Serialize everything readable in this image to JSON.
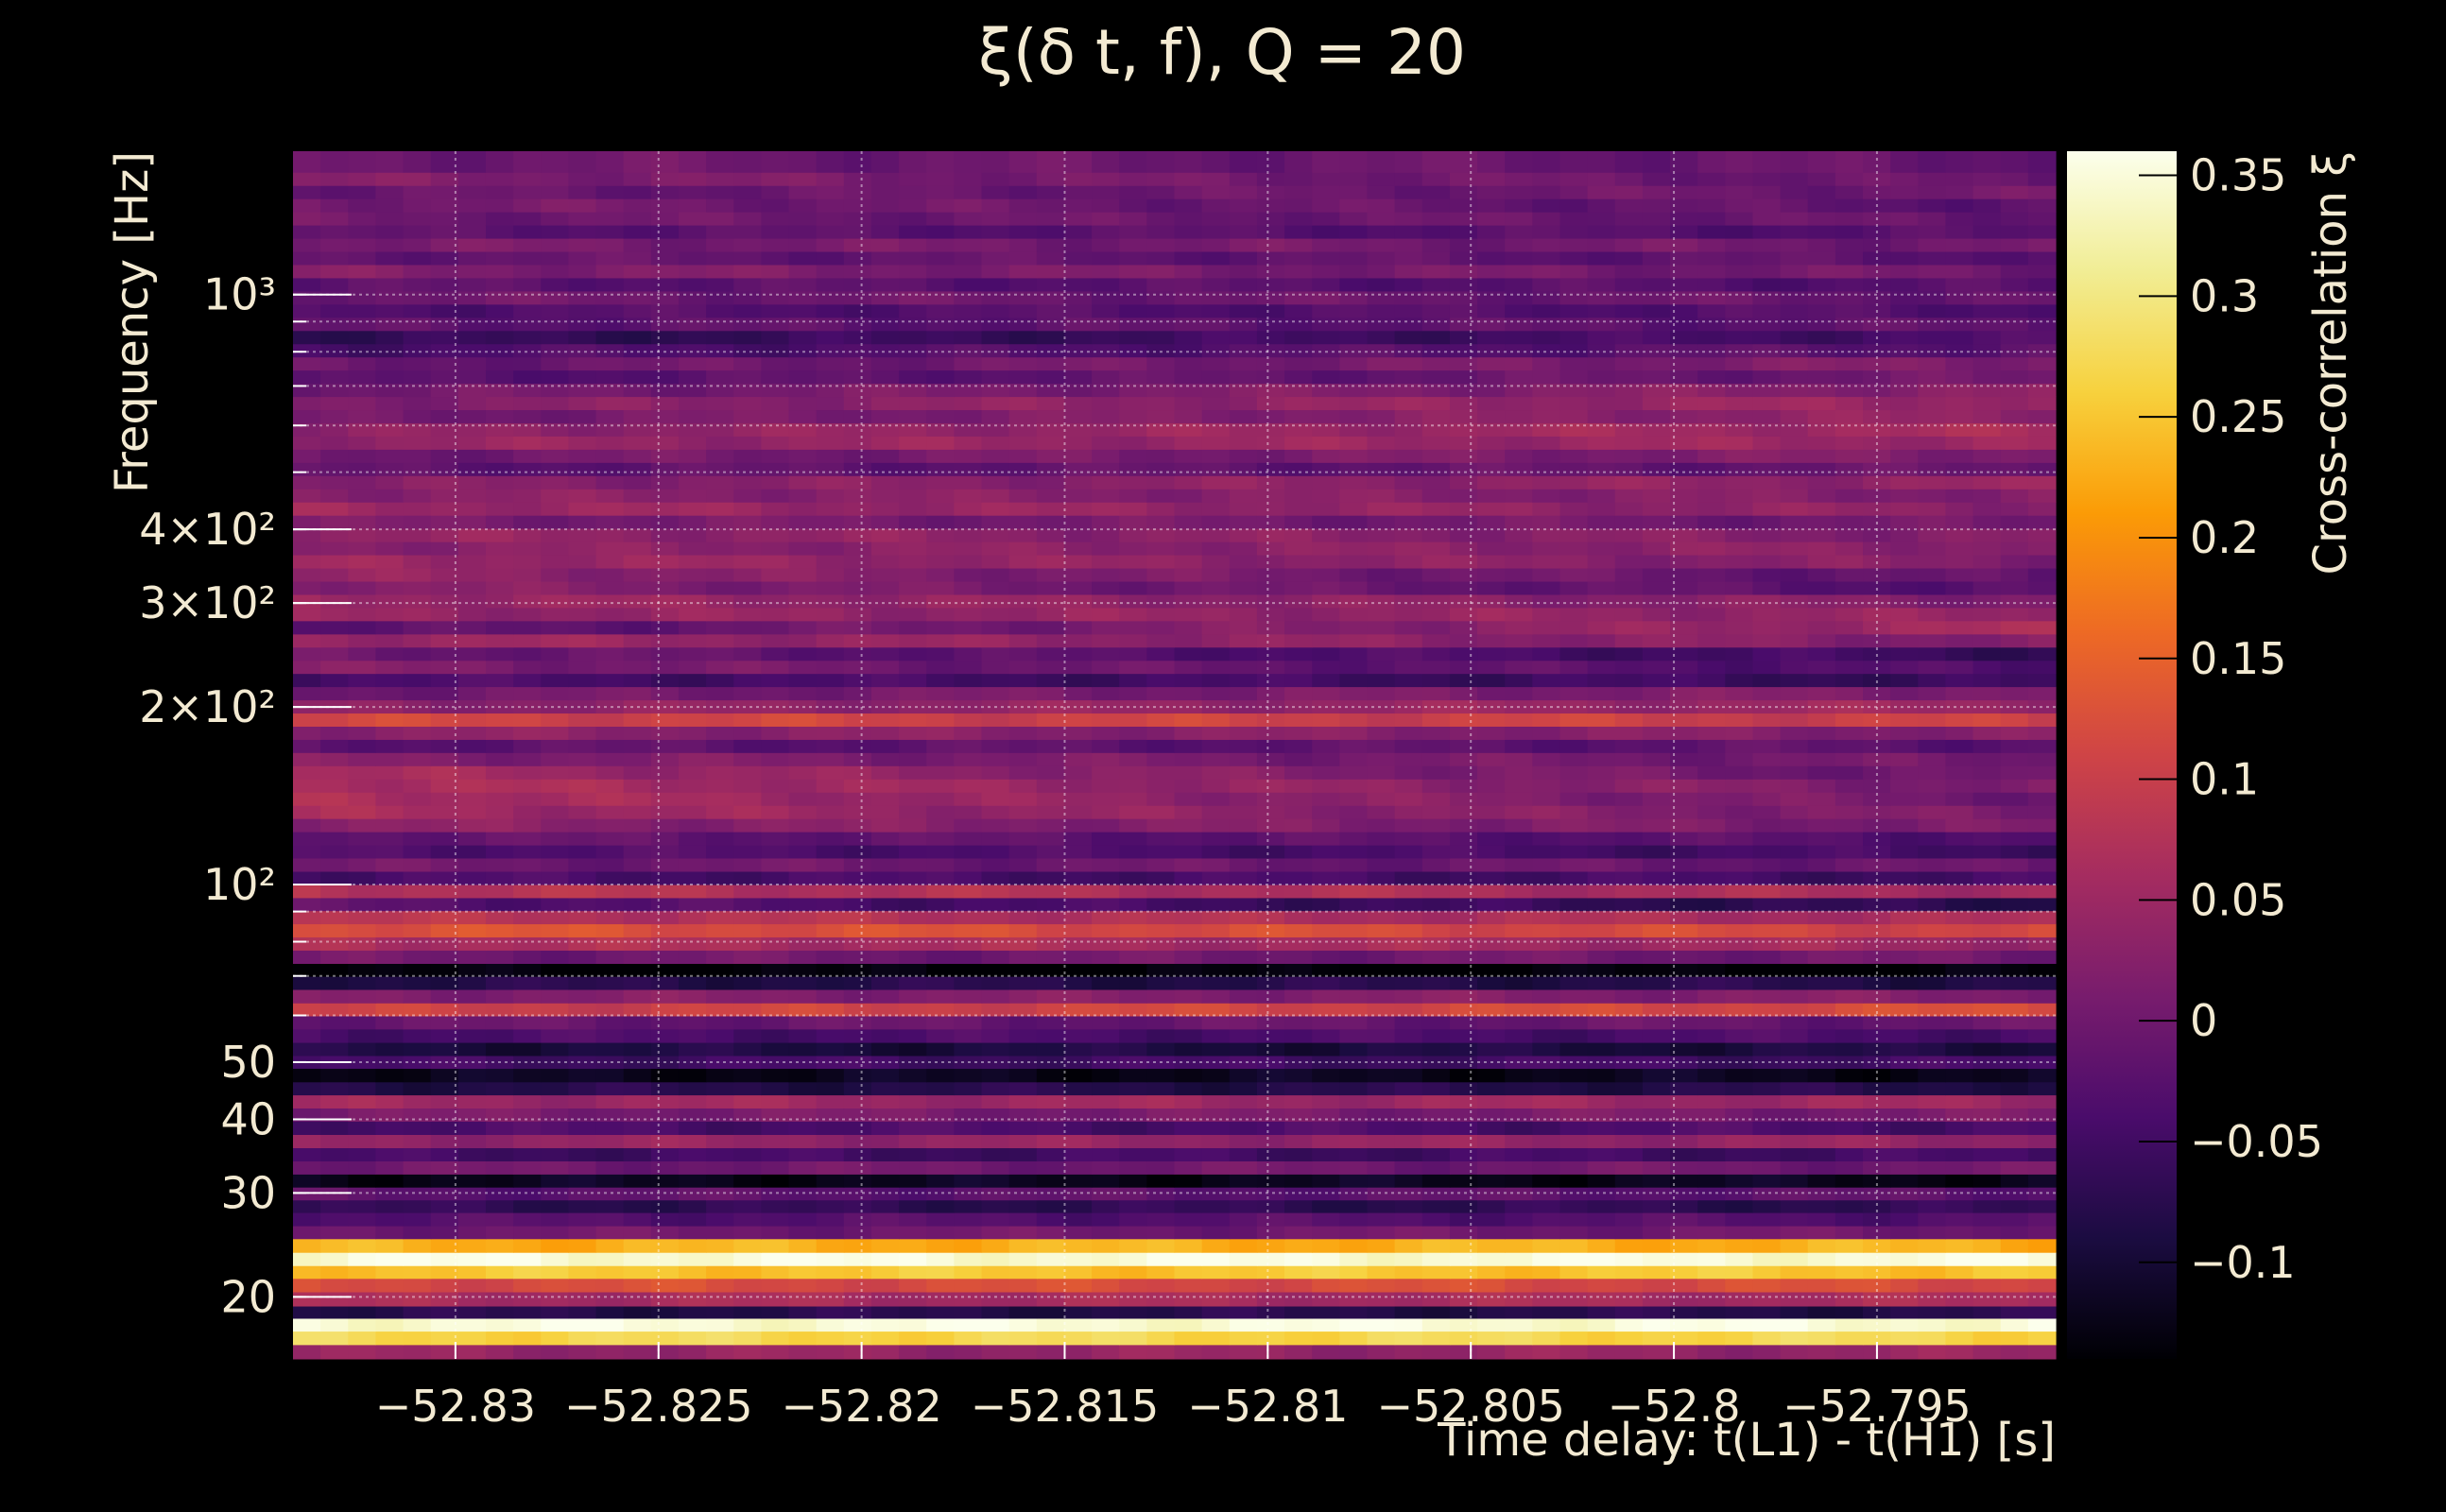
{
  "chart_data": {
    "type": "heatmap",
    "title": "ξ(δ t, f), Q = 20",
    "xlabel": "Time delay: t(L1) - t(H1) [s]",
    "ylabel": "Frequency [Hz]",
    "colorbar_label": "Cross-correlation ξ",
    "x_range": [
      -52.834,
      -52.7906
    ],
    "y_range": [
      15.7,
      1750
    ],
    "y_scale": "log",
    "grid": true,
    "colormap": "inferno",
    "color_range": [
      -0.14,
      0.36
    ],
    "x_ticks": [
      {
        "value": -52.83,
        "label": "−52.83"
      },
      {
        "value": -52.825,
        "label": "−52.825"
      },
      {
        "value": -52.82,
        "label": "−52.82"
      },
      {
        "value": -52.815,
        "label": "−52.815"
      },
      {
        "value": -52.81,
        "label": "−52.81"
      },
      {
        "value": -52.805,
        "label": "−52.805"
      },
      {
        "value": -52.8,
        "label": "−52.8"
      },
      {
        "value": -52.795,
        "label": "−52.795"
      }
    ],
    "y_ticks": [
      {
        "value": 20,
        "label": "20"
      },
      {
        "value": 30,
        "label": "30"
      },
      {
        "value": 40,
        "label": "40"
      },
      {
        "value": 50,
        "label": "50"
      },
      {
        "value": 100,
        "label": "10²"
      },
      {
        "value": 200,
        "label": "2×10²"
      },
      {
        "value": 300,
        "label": "3×10²"
      },
      {
        "value": 400,
        "label": "4×10²"
      },
      {
        "value": 1000,
        "label": "10³"
      }
    ],
    "colorbar_ticks": [
      {
        "value": -0.1,
        "label": "−0.1"
      },
      {
        "value": -0.05,
        "label": "−0.05"
      },
      {
        "value": 0,
        "label": "0"
      },
      {
        "value": 0.05,
        "label": "0.05"
      },
      {
        "value": 0.1,
        "label": "0.1"
      },
      {
        "value": 0.15,
        "label": "0.15"
      },
      {
        "value": 0.2,
        "label": "0.2"
      },
      {
        "value": 0.25,
        "label": "0.25"
      },
      {
        "value": 0.3,
        "label": "0.3"
      },
      {
        "value": 0.35,
        "label": "0.35"
      }
    ],
    "bands": [
      {
        "f_low": 15.7,
        "f_high": 16.6,
        "start": 0.04,
        "end": 0.04
      },
      {
        "f_low": 16.6,
        "f_high": 17.5,
        "start": 0.27,
        "end": 0.27
      },
      {
        "f_low": 17.5,
        "f_high": 18.4,
        "start": 0.35,
        "end": 0.35
      },
      {
        "f_low": 18.4,
        "f_high": 19.3,
        "start": -0.08,
        "end": -0.08
      },
      {
        "f_low": 19.3,
        "f_high": 20.4,
        "start": 0.06,
        "end": 0.06
      },
      {
        "f_low": 20.4,
        "f_high": 21.5,
        "start": 0.12,
        "end": 0.12
      },
      {
        "f_low": 21.5,
        "f_high": 22.6,
        "start": 0.25,
        "end": 0.25
      },
      {
        "f_low": 22.6,
        "f_high": 23.8,
        "start": 0.35,
        "end": 0.35
      },
      {
        "f_low": 23.8,
        "f_high": 25.1,
        "start": 0.23,
        "end": 0.23
      },
      {
        "f_low": 25.1,
        "f_high": 26.4,
        "start": 0.0,
        "end": 0.0
      },
      {
        "f_low": 26.4,
        "f_high": 27.8,
        "start": -0.03,
        "end": -0.03
      },
      {
        "f_low": 27.8,
        "f_high": 29.2,
        "start": -0.07,
        "end": -0.07
      },
      {
        "f_low": 29.2,
        "f_high": 30.7,
        "start": -0.02,
        "end": -0.02
      },
      {
        "f_low": 30.7,
        "f_high": 32.3,
        "start": -0.12,
        "end": -0.12
      },
      {
        "f_low": 32.3,
        "f_high": 34.0,
        "start": 0.0,
        "end": 0.0
      },
      {
        "f_low": 34.0,
        "f_high": 35.8,
        "start": -0.05,
        "end": -0.05
      },
      {
        "f_low": 35.8,
        "f_high": 37.7,
        "start": 0.04,
        "end": 0.04
      },
      {
        "f_low": 37.7,
        "f_high": 39.7,
        "start": -0.04,
        "end": -0.04
      },
      {
        "f_low": 39.7,
        "f_high": 41.8,
        "start": 0.01,
        "end": 0.01
      },
      {
        "f_low": 41.8,
        "f_high": 44.0,
        "start": 0.05,
        "end": 0.05
      },
      {
        "f_low": 44.0,
        "f_high": 46.3,
        "start": -0.08,
        "end": -0.08
      },
      {
        "f_low": 46.3,
        "f_high": 48.8,
        "start": -0.12,
        "end": -0.12
      },
      {
        "f_low": 48.8,
        "f_high": 51.3,
        "start": -0.05,
        "end": -0.05
      },
      {
        "f_low": 51.3,
        "f_high": 54.0,
        "start": -0.09,
        "end": -0.09
      },
      {
        "f_low": 54.0,
        "f_high": 56.9,
        "start": -0.04,
        "end": -0.04
      },
      {
        "f_low": 56.9,
        "f_high": 59.9,
        "start": -0.01,
        "end": -0.01
      },
      {
        "f_low": 59.9,
        "f_high": 63.0,
        "start": 0.1,
        "end": 0.12
      },
      {
        "f_low": 63.0,
        "f_high": 66.4,
        "start": 0.02,
        "end": 0.02
      },
      {
        "f_low": 66.4,
        "f_high": 69.9,
        "start": -0.08,
        "end": -0.08
      },
      {
        "f_low": 69.9,
        "f_high": 73.5,
        "start": -0.14,
        "end": -0.14
      },
      {
        "f_low": 73.5,
        "f_high": 77.4,
        "start": 0.0,
        "end": 0.0
      },
      {
        "f_low": 77.4,
        "f_high": 81.5,
        "start": 0.07,
        "end": 0.05
      },
      {
        "f_low": 81.5,
        "f_high": 85.8,
        "start": 0.13,
        "end": 0.11
      },
      {
        "f_low": 85.8,
        "f_high": 90.3,
        "start": 0.08,
        "end": 0.06
      },
      {
        "f_low": 90.3,
        "f_high": 95.0,
        "start": -0.02,
        "end": -0.08
      },
      {
        "f_low": 95.0,
        "f_high": 100.0,
        "start": 0.08,
        "end": 0.06
      },
      {
        "f_low": 100.0,
        "f_high": 105.3,
        "start": -0.04,
        "end": -0.05
      },
      {
        "f_low": 105.3,
        "f_high": 110.9,
        "start": 0.0,
        "end": -0.01
      },
      {
        "f_low": 110.9,
        "f_high": 116.7,
        "start": -0.03,
        "end": -0.05
      },
      {
        "f_low": 116.7,
        "f_high": 122.9,
        "start": -0.01,
        "end": -0.03
      },
      {
        "f_low": 122.9,
        "f_high": 129.4,
        "start": 0.03,
        "end": 0.01
      },
      {
        "f_low": 129.4,
        "f_high": 136.2,
        "start": 0.06,
        "end": 0.01
      },
      {
        "f_low": 136.2,
        "f_high": 143.4,
        "start": 0.07,
        "end": 0.0
      },
      {
        "f_low": 143.4,
        "f_high": 151.0,
        "start": 0.07,
        "end": 0.01
      },
      {
        "f_low": 151.0,
        "f_high": 159.0,
        "start": 0.06,
        "end": -0.01
      },
      {
        "f_low": 159.0,
        "f_high": 167.4,
        "start": 0.02,
        "end": 0.0
      },
      {
        "f_low": 167.4,
        "f_high": 176.2,
        "start": -0.02,
        "end": -0.02
      },
      {
        "f_low": 176.2,
        "f_high": 185.5,
        "start": 0.03,
        "end": 0.02
      },
      {
        "f_low": 185.5,
        "f_high": 195.3,
        "start": 0.11,
        "end": 0.1
      },
      {
        "f_low": 195.3,
        "f_high": 205.6,
        "start": 0.03,
        "end": 0.05
      },
      {
        "f_low": 205.6,
        "f_high": 216.5,
        "start": 0.0,
        "end": 0.02
      },
      {
        "f_low": 216.5,
        "f_high": 227.9,
        "start": -0.04,
        "end": -0.06
      },
      {
        "f_low": 227.9,
        "f_high": 239.9,
        "start": 0.02,
        "end": -0.04
      },
      {
        "f_low": 239.9,
        "f_high": 252.6,
        "start": 0.0,
        "end": -0.06
      },
      {
        "f_low": 252.6,
        "f_high": 265.9,
        "start": 0.05,
        "end": 0.02
      },
      {
        "f_low": 265.9,
        "f_high": 280.0,
        "start": -0.03,
        "end": 0.06
      },
      {
        "f_low": 280.0,
        "f_high": 294.8,
        "start": 0.04,
        "end": 0.04
      },
      {
        "f_low": 294.8,
        "f_high": 310.3,
        "start": 0.05,
        "end": 0.02
      },
      {
        "f_low": 310.3,
        "f_high": 326.7,
        "start": 0.03,
        "end": -0.03
      },
      {
        "f_low": 326.7,
        "f_high": 344.0,
        "start": 0.04,
        "end": -0.02
      },
      {
        "f_low": 344.0,
        "f_high": 362.2,
        "start": 0.05,
        "end": 0.02
      },
      {
        "f_low": 362.2,
        "f_high": 381.3,
        "start": 0.03,
        "end": 0.03
      },
      {
        "f_low": 381.3,
        "f_high": 401.5,
        "start": 0.04,
        "end": 0.02
      },
      {
        "f_low": 401.5,
        "f_high": 422.7,
        "start": 0.01,
        "end": 0.0
      },
      {
        "f_low": 422.7,
        "f_high": 445.0,
        "start": 0.05,
        "end": 0.03
      },
      {
        "f_low": 445.0,
        "f_high": 468.5,
        "start": 0.03,
        "end": 0.02
      },
      {
        "f_low": 468.5,
        "f_high": 493.3,
        "start": 0.02,
        "end": 0.04
      },
      {
        "f_low": 493.3,
        "f_high": 519.4,
        "start": -0.02,
        "end": -0.01
      },
      {
        "f_low": 519.4,
        "f_high": 546.8,
        "start": 0.0,
        "end": 0.02
      },
      {
        "f_low": 546.8,
        "f_high": 575.7,
        "start": 0.04,
        "end": 0.05
      },
      {
        "f_low": 575.7,
        "f_high": 606.1,
        "start": 0.03,
        "end": 0.06
      },
      {
        "f_low": 606.1,
        "f_high": 638.1,
        "start": 0.0,
        "end": 0.04
      },
      {
        "f_low": 638.1,
        "f_high": 671.8,
        "start": 0.02,
        "end": 0.05
      },
      {
        "f_low": 671.8,
        "f_high": 707.3,
        "start": 0.0,
        "end": 0.03
      },
      {
        "f_low": 707.3,
        "f_high": 744.7,
        "start": -0.03,
        "end": 0.0
      },
      {
        "f_low": 744.7,
        "f_high": 784.0,
        "start": -0.01,
        "end": 0.02
      },
      {
        "f_low": 784.0,
        "f_high": 825.4,
        "start": -0.04,
        "end": -0.02
      },
      {
        "f_low": 825.4,
        "f_high": 869.0,
        "start": -0.07,
        "end": -0.04
      },
      {
        "f_low": 869.0,
        "f_high": 915.0,
        "start": -0.02,
        "end": -0.02
      },
      {
        "f_low": 915.0,
        "f_high": 963.3,
        "start": -0.03,
        "end": -0.03
      },
      {
        "f_low": 963.3,
        "f_high": 1014.2,
        "start": 0.0,
        "end": -0.01
      },
      {
        "f_low": 1014.2,
        "f_high": 1067.8,
        "start": -0.02,
        "end": -0.03
      },
      {
        "f_low": 1067.8,
        "f_high": 1124.2,
        "start": 0.02,
        "end": 0.0
      },
      {
        "f_low": 1124.2,
        "f_high": 1183.6,
        "start": -0.01,
        "end": -0.02
      },
      {
        "f_low": 1183.6,
        "f_high": 1246.1,
        "start": 0.01,
        "end": 0.0
      },
      {
        "f_low": 1246.1,
        "f_high": 1312.0,
        "start": -0.02,
        "end": -0.03
      },
      {
        "f_low": 1312.0,
        "f_high": 1381.3,
        "start": 0.0,
        "end": -0.01
      },
      {
        "f_low": 1381.3,
        "f_high": 1454.3,
        "start": 0.01,
        "end": -0.02
      },
      {
        "f_low": 1454.3,
        "f_high": 1531.1,
        "start": -0.01,
        "end": 0.0
      },
      {
        "f_low": 1531.1,
        "f_high": 1612.0,
        "start": 0.02,
        "end": -0.01
      },
      {
        "f_low": 1612.0,
        "f_high": 1750.0,
        "start": 0.0,
        "end": -0.01
      }
    ]
  }
}
